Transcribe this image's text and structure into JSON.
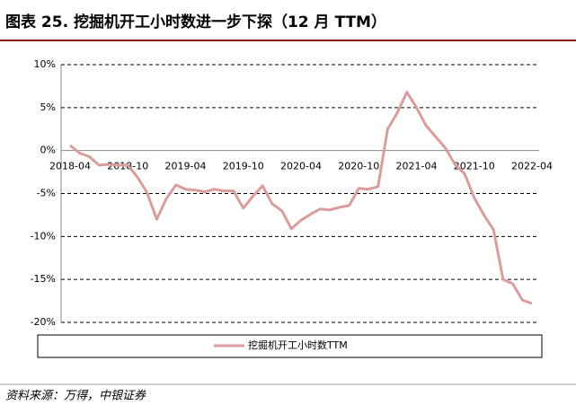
{
  "chart_data": {
    "type": "line",
    "title": "图表 25. 挖掘机开工小时数进一步下探（12 月 TTM）",
    "source": "资料来源：万得，中银证券",
    "categories": [
      "2018-04",
      null,
      null,
      null,
      null,
      null,
      "2018-10",
      null,
      null,
      null,
      null,
      null,
      "2019-04",
      null,
      null,
      null,
      null,
      null,
      "2019-10",
      null,
      null,
      null,
      null,
      null,
      "2020-04",
      null,
      null,
      null,
      null,
      null,
      "2020-10",
      null,
      null,
      null,
      null,
      null,
      "2021-04",
      null,
      null,
      null,
      null,
      null,
      "2021-10",
      null,
      null,
      null,
      null,
      null,
      "2022-04"
    ],
    "series": [
      {
        "name": "挖掘机开工小时数TTM",
        "color": "#dc9c9c",
        "values": [
          0.6,
          -0.3,
          -0.7,
          -1.7,
          -1.6,
          -1.7,
          -1.7,
          -3.1,
          -4.9,
          -8.0,
          -5.6,
          -4.0,
          -4.5,
          -4.6,
          -4.8,
          -4.5,
          -4.7,
          -4.7,
          -6.7,
          -5.3,
          -4.1,
          -6.2,
          -7.0,
          -9.1,
          -8.1,
          -7.4,
          -6.8,
          -6.9,
          -6.6,
          -6.4,
          -4.4,
          -4.5,
          -4.2,
          2.5,
          4.4,
          6.8,
          5.0,
          2.9,
          1.6,
          0.3,
          -1.6,
          -2.7,
          -5.5,
          -7.5,
          -9.2,
          -15.0,
          -15.5,
          -17.4,
          -17.8
        ]
      }
    ],
    "ylim": [
      -20,
      10
    ],
    "yticks": [
      {
        "value": 10,
        "label": "10%"
      },
      {
        "value": 5,
        "label": "5%"
      },
      {
        "value": 0,
        "label": "0%"
      },
      {
        "value": -5,
        "label": "-5%"
      },
      {
        "value": -10,
        "label": "-10%"
      },
      {
        "value": -15,
        "label": "-15%"
      },
      {
        "value": -20,
        "label": "-20%"
      }
    ],
    "grid": true
  }
}
